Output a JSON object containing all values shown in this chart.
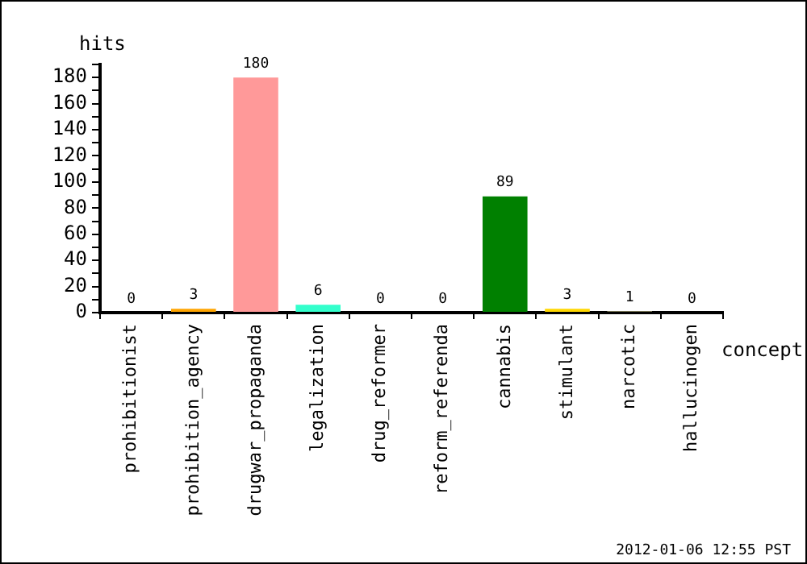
{
  "chart_data": {
    "type": "bar",
    "xlabel": "concept",
    "ylabel": "hits",
    "categories": [
      "prohibitionist",
      "prohibition_agency",
      "drugwar_propaganda",
      "legalization",
      "drug_reformer",
      "reform_referenda",
      "cannabis",
      "stimulant",
      "narcotic",
      "hallucinogen"
    ],
    "values": [
      0,
      3,
      180,
      6,
      0,
      0,
      89,
      3,
      1,
      0
    ],
    "colors": [
      "#ffa07a",
      "#ffa500",
      "#ff9999",
      "#33ffcc",
      "#99ffff",
      "#99ffff",
      "#008000",
      "#ffd700",
      "#eee8aa",
      "#ffff00"
    ],
    "ylim": [
      0,
      190
    ],
    "yticks": [
      0,
      {
        "value": 10,
        "label": null
      },
      20,
      {
        "value": 30,
        "label": null
      },
      40,
      {
        "value": 50,
        "label": null
      },
      60,
      {
        "value": 70,
        "label": null
      },
      80,
      {
        "value": 90,
        "label": null
      },
      100,
      {
        "value": 110,
        "label": null
      },
      120,
      {
        "value": 130,
        "label": null
      },
      140,
      {
        "value": 150,
        "label": null
      },
      160,
      {
        "value": 170,
        "label": null
      },
      180,
      {
        "value": 190,
        "label": null
      }
    ],
    "data_labels": true,
    "grid": false,
    "legend": false,
    "annotations": [
      "2012-01-06 12:55 PST"
    ]
  }
}
